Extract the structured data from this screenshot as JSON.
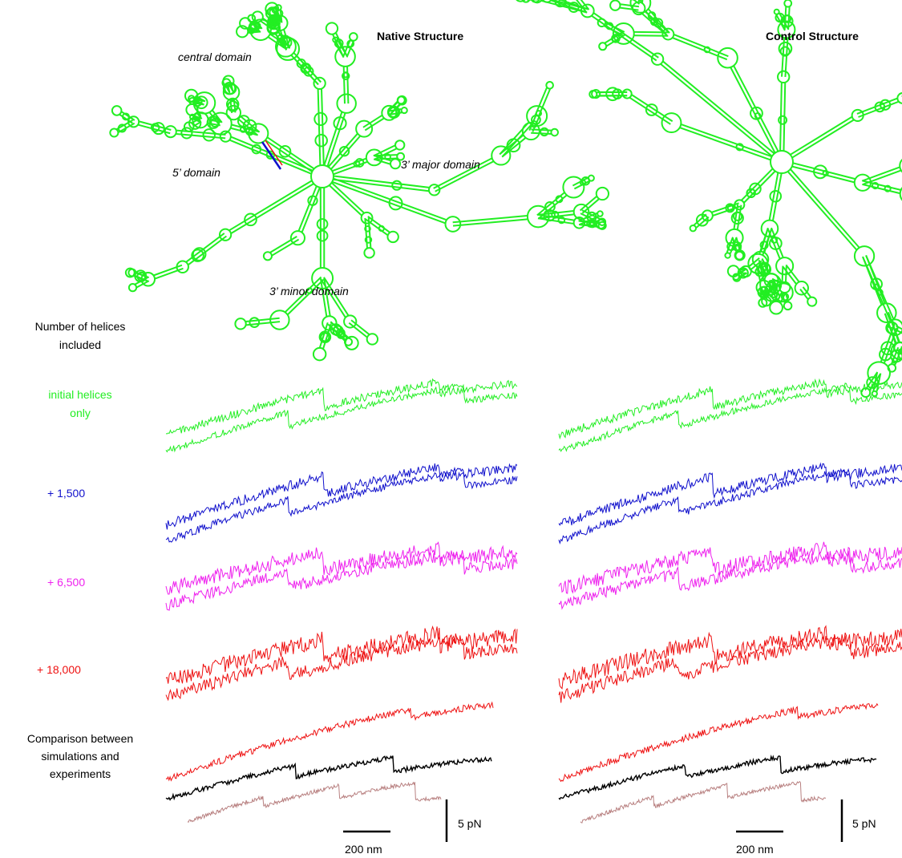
{
  "panels": {
    "native": {
      "title": "Native Structure",
      "domains": {
        "central": "central domain",
        "five_prime": "5’ domain",
        "three_major": "3’ major domain",
        "three_minor": "3’ minor domain"
      }
    },
    "control": {
      "title": "Control Structure"
    }
  },
  "row_labels": {
    "header_line1": "Number of helices",
    "header_line2": "included",
    "initial_line1": "initial helices",
    "initial_line2": "only",
    "plus_1500": "+ 1,500",
    "plus_6500": "+ 6,500",
    "plus_18000": "+ 18,000",
    "comparison_line1": "Comparison between",
    "comparison_line2": "simulations and",
    "comparison_line3": "experiments"
  },
  "scale_bars": {
    "force": "5 pN",
    "extension": "200 nm"
  },
  "colors": {
    "initial": "#22ee22",
    "plus_1500": "#1010cc",
    "plus_6500": "#ee22ee",
    "plus_18000": "#ee1111",
    "experiment": "#000000",
    "reference": "#b88080",
    "structure": "#22ee22"
  }
}
